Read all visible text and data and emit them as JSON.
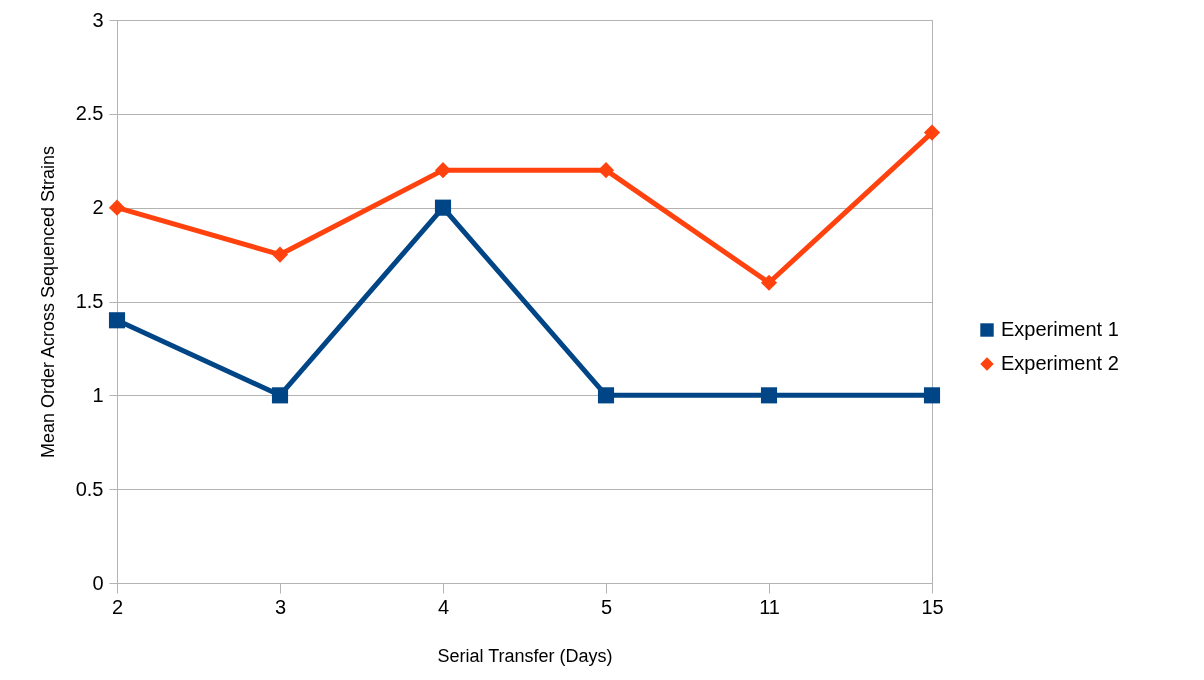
{
  "chart_data": {
    "type": "line",
    "xlabel": "Serial Transfer (Days)",
    "ylabel": "Mean Order Across Sequenced Strains",
    "categories": [
      "2",
      "3",
      "4",
      "5",
      "11",
      "15"
    ],
    "series": [
      {
        "name": "Experiment 1",
        "color": "#004586",
        "marker": "square",
        "values": [
          1.4,
          1,
          2,
          1,
          1,
          1
        ]
      },
      {
        "name": "Experiment 2",
        "color": "#ff420e",
        "marker": "diamond",
        "values": [
          2,
          1.75,
          2.2,
          2.2,
          1.6,
          2.4
        ]
      }
    ],
    "ylim": [
      0,
      3
    ],
    "yticks": [
      0,
      0.5,
      1,
      1.5,
      2,
      2.5,
      3
    ],
    "grid": "y",
    "legend": "right",
    "line_style": "solid"
  }
}
